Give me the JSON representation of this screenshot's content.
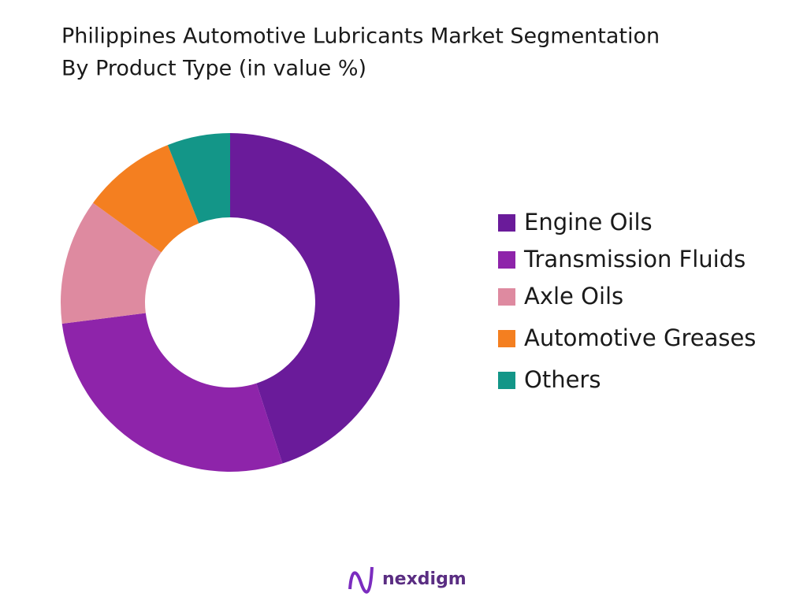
{
  "chart_data": {
    "type": "donut",
    "title": "Philippines Automotive Lubricants Market Segmentation",
    "subtitle": "By Product Type (in value %)",
    "categories": [
      "Engine Oils",
      "Transmission Fluids",
      "Axle Oils",
      "Automotive Greases",
      "Others"
    ],
    "values": [
      45,
      28,
      12,
      9,
      6
    ],
    "colors": [
      "#6a1b9a",
      "#8e24aa",
      "#de8aa0",
      "#f47f20",
      "#139688"
    ],
    "legend": "right"
  },
  "footer": {
    "brand": "nexdigm"
  }
}
